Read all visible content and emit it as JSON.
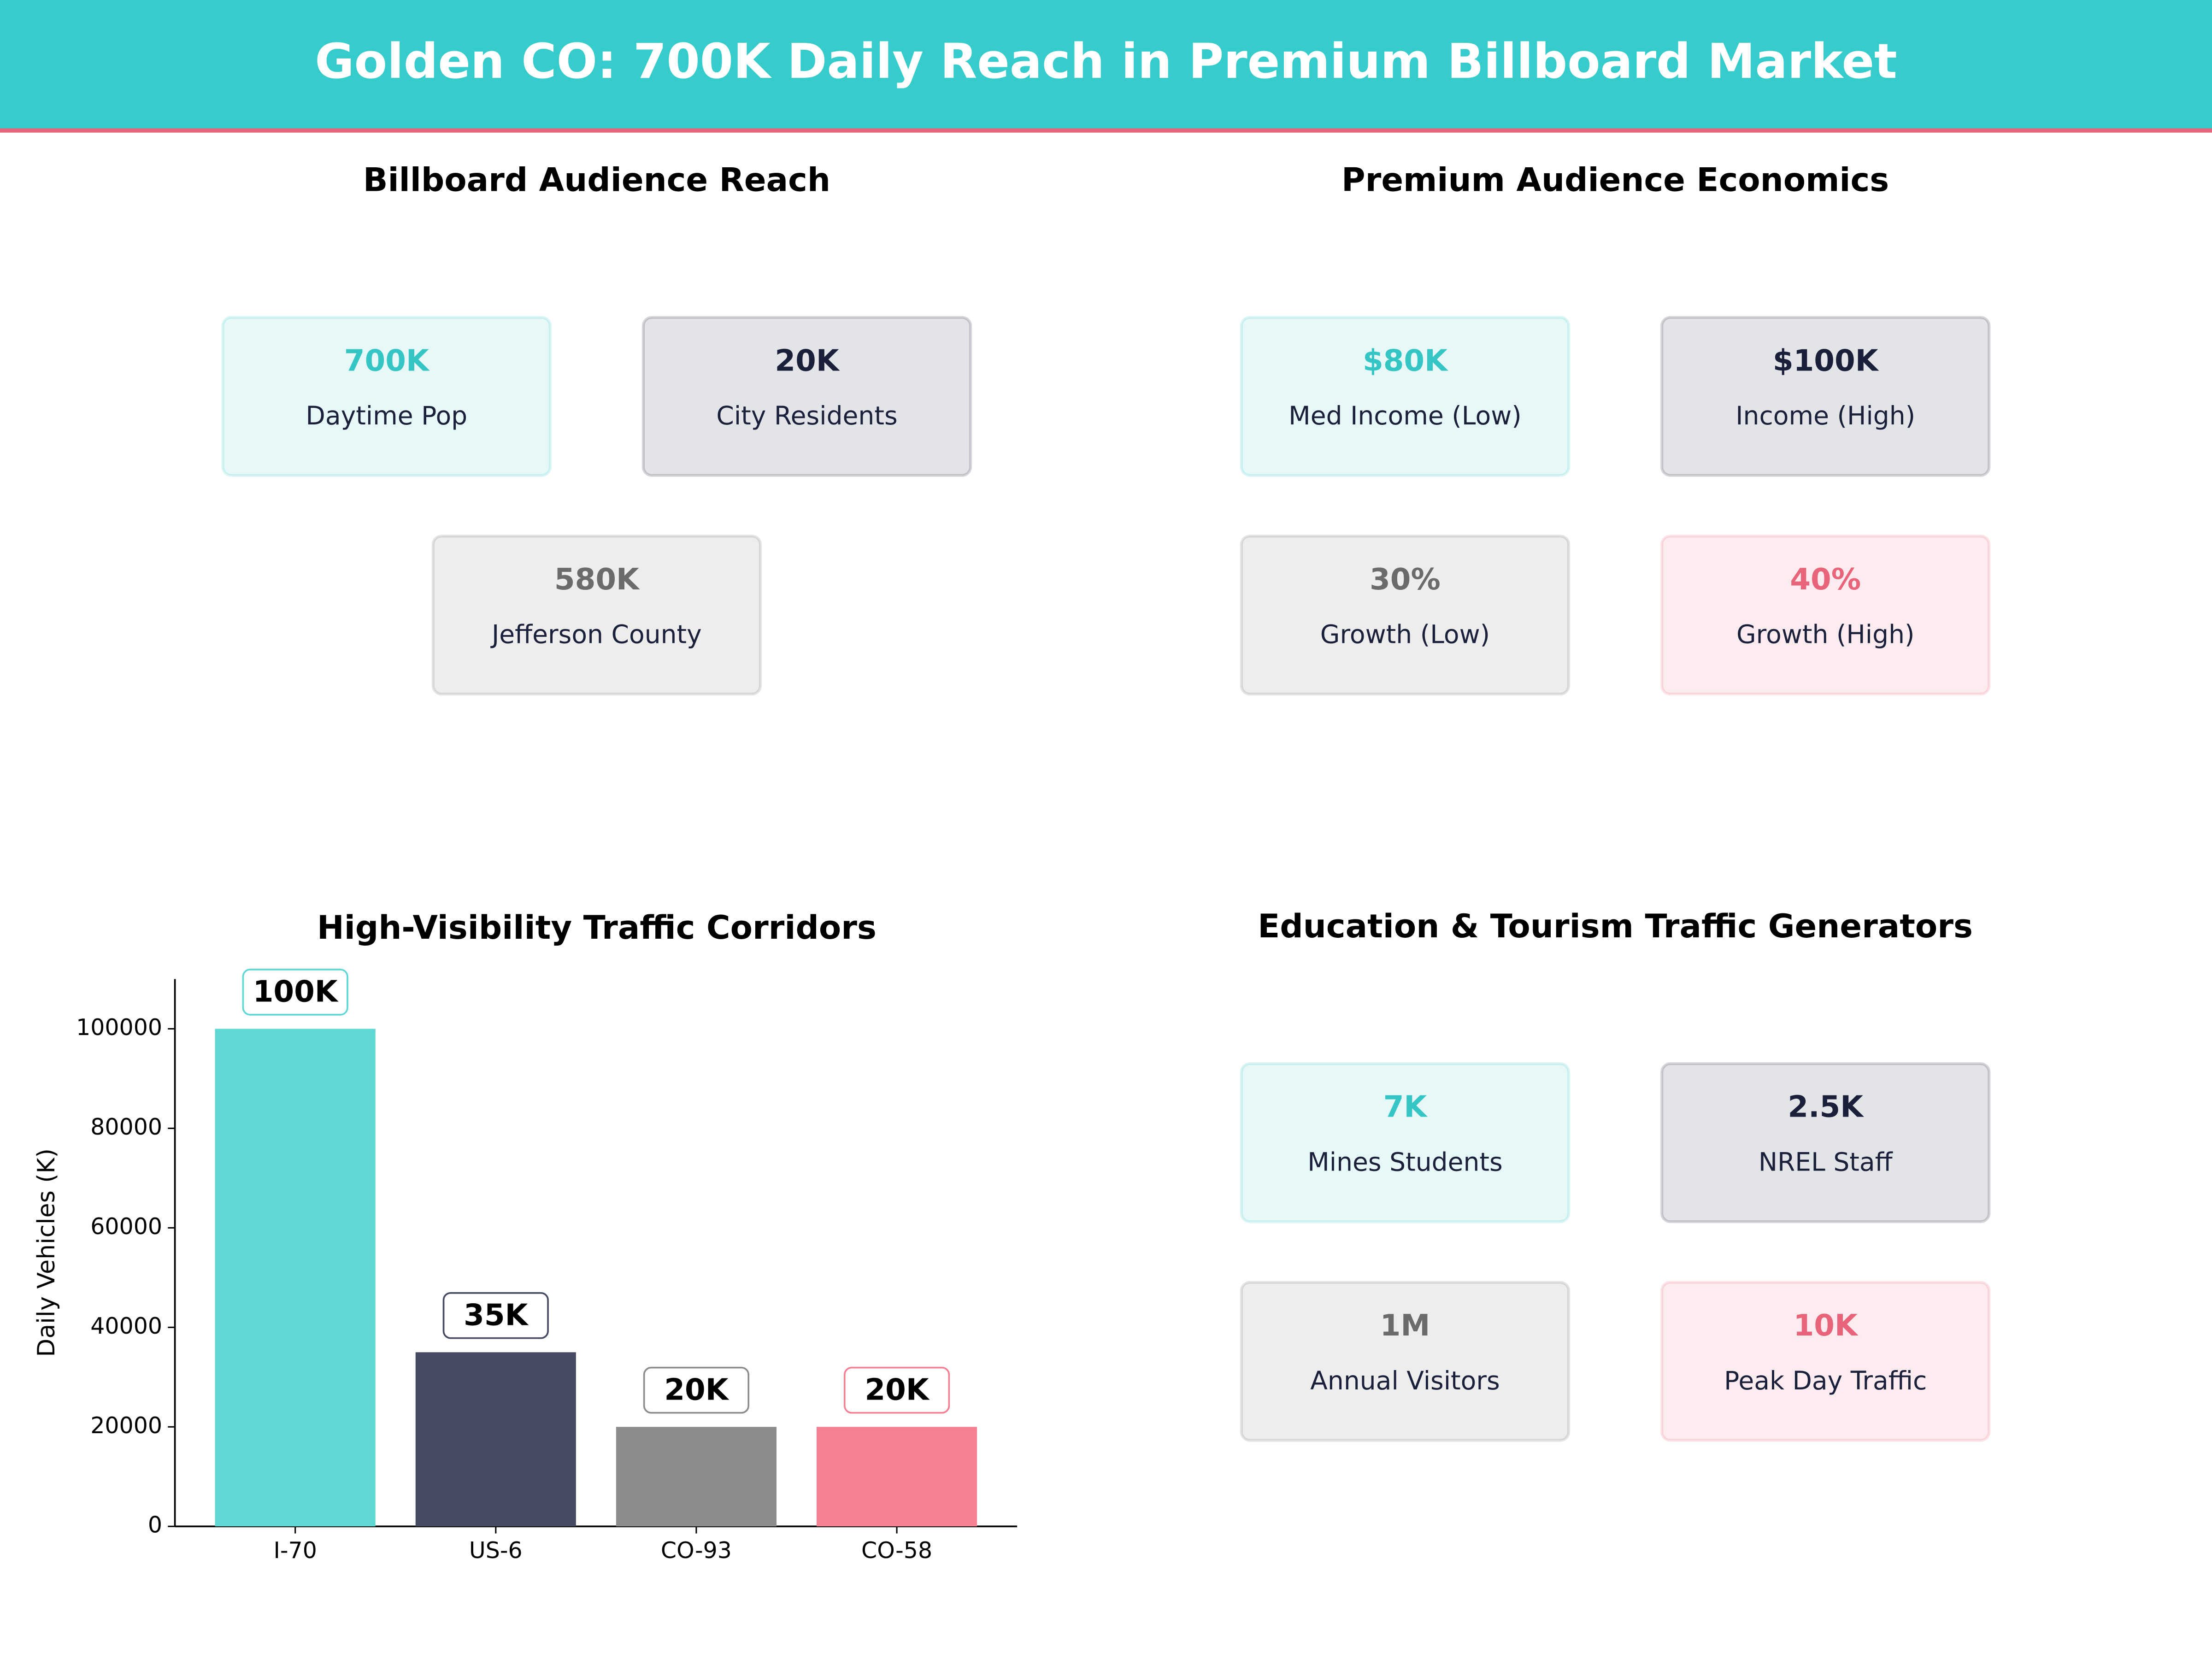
{
  "title": "Golden CO: 700K Daily Reach in Premium Billboard Market",
  "panels": [
    {
      "title": "Billboard Audience Reach",
      "cards": [
        {
          "value": "700K",
          "label": "Daytime Pop",
          "color": "#36c5c5"
        },
        {
          "value": "20K",
          "label": "City Residents",
          "color": "#1a1f3a"
        },
        {
          "value": "580K",
          "label": "Jefferson County",
          "color": "#6b6b6b"
        }
      ]
    },
    {
      "title": "Premium Audience Economics",
      "cards": [
        {
          "value": "$80K",
          "label": "Med Income (Low)",
          "color": "#36c5c5"
        },
        {
          "value": "$100K",
          "label": "Income (High)",
          "color": "#1a1f3a"
        },
        {
          "value": "30%",
          "label": "Growth (Low)",
          "color": "#6b6b6b"
        },
        {
          "value": "40%",
          "label": "Growth (High)",
          "color": "#e8647a"
        }
      ]
    },
    {
      "title": "Education & Tourism Traffic Generators",
      "cards": [
        {
          "value": "7K",
          "label": "Mines Students",
          "color": "#36c5c5"
        },
        {
          "value": "2.5K",
          "label": "NREL Staff",
          "color": "#1a1f3a"
        },
        {
          "value": "1M",
          "label": "Annual Visitors",
          "color": "#6b6b6b"
        },
        {
          "value": "10K",
          "label": "Peak Day Traffic",
          "color": "#e8647a"
        }
      ]
    }
  ],
  "chart_data": {
    "type": "bar",
    "title": "High-Visibility Traffic Corridors",
    "ylabel": "Daily Vehicles (K)",
    "categories": [
      "I-70",
      "US-6",
      "CO-93",
      "CO-58"
    ],
    "values": [
      100000,
      35000,
      20000,
      20000
    ],
    "value_labels": [
      "100K",
      "35K",
      "20K",
      "20K"
    ],
    "colors": [
      "#5fd8d5",
      "#474a63",
      "#8c8c8c",
      "#f57f93"
    ],
    "ylim": [
      0,
      110000
    ],
    "yticks": [
      0,
      20000,
      40000,
      60000,
      80000,
      100000
    ]
  }
}
